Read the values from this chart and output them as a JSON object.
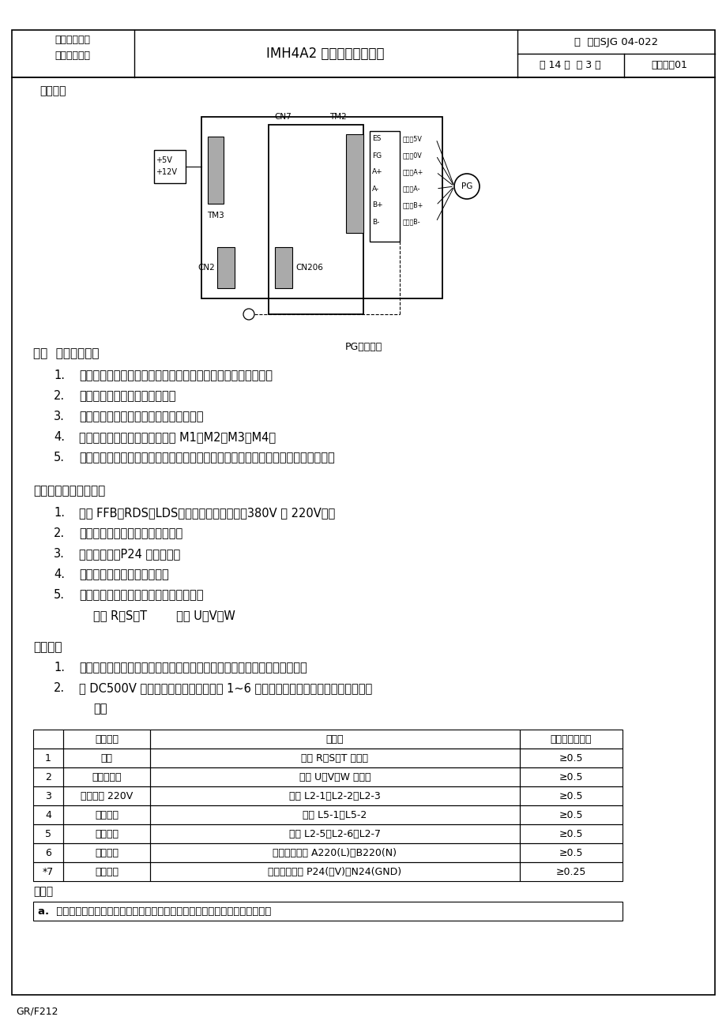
{
  "title_company_line1": "广州广日电梯",
  "title_company_line2": "工业有限公司",
  "title_manual": "IMH4A2 变频扶梯调试手册",
  "title_code": "编  号：SJG 04-022",
  "title_pages": "共 14 页  第 3 页",
  "title_version": "版本号：01",
  "footer": "GR/F212",
  "bg_color": "#ffffff",
  "intro_text": "定位孔。",
  "diagram_caption": "PG卡接线图",
  "section3_title": "三、  现场调试准备",
  "section3_items": [
    "动力柜、控制柜通电之前，应先对照原理图检查接线是否正确；",
    "检查各接地地线接地是否可靠；",
    "检查对照色线连接旋转编码器是否正确；",
    "接上动力柜与控制柜的连接电缆 M1～M2，M3～M4；",
    "将所有急停开关，上、下部梯级下陷等安全开关复位，将下部检修盒打至正常状态。"
  ],
  "section4_title": "四、电气系统绝缘测定",
  "section4_items": [
    "断开 FFB、RDS、LDS，断开机房电源开关（380V 和 220V）；",
    "拆除变频器控制端子的所有接线；",
    "拆除变频器、P24 的接地线；",
    "将所有的开关置于正常状态；",
    "用线夹短接下列动力柜中的端子和元件："
  ],
  "section4_sub": "端子 R、S、T        端子 U、V、W",
  "test_method_title": "测试方法",
  "test_method_item1": "用模拟测试表量度下表中带（＊）的回路与控制柜接地板之间的绝缘电阻；",
  "test_method_item2a": "用 DC500V 直流高阻表分别测试下表中 1~6 项各回路与控制柜接地板之间的绝缘电",
  "test_method_item2b": "阻。",
  "table_header_cols": [
    "",
    "电路名称",
    "测试点",
    "标准值（兆欧）"
  ],
  "table_rows": [
    [
      "1",
      "电源",
      "端子 R、S、T 短接点",
      "≥0.5"
    ],
    [
      "2",
      "电动机回路",
      "端子 U、V、W 短接点",
      "≥0.5"
    ],
    [
      "3",
      "照明回路 220V",
      "端子 L2-1、L2-2、L2-3",
      "≥0.5"
    ],
    [
      "4",
      "制动电阻",
      "端子 L5-1、L5-2",
      "≥0.5"
    ],
    [
      "5",
      "抱闸回路",
      "端子 L2-5、L2-6、L2-7",
      "≥0.5"
    ],
    [
      "6",
      "控制回路",
      "开关电源端子 A220(L)、B220(N)",
      "≥0.5"
    ],
    [
      "*7",
      "信号回路",
      "开关电源端子 P24(＋V)、N24(GND)",
      "≥0.25"
    ]
  ],
  "note_title": "注意：",
  "note_item": "a.  不要用高阻表对变频器的控制端子进行测试，否则将损坏变频器的电气元件。"
}
